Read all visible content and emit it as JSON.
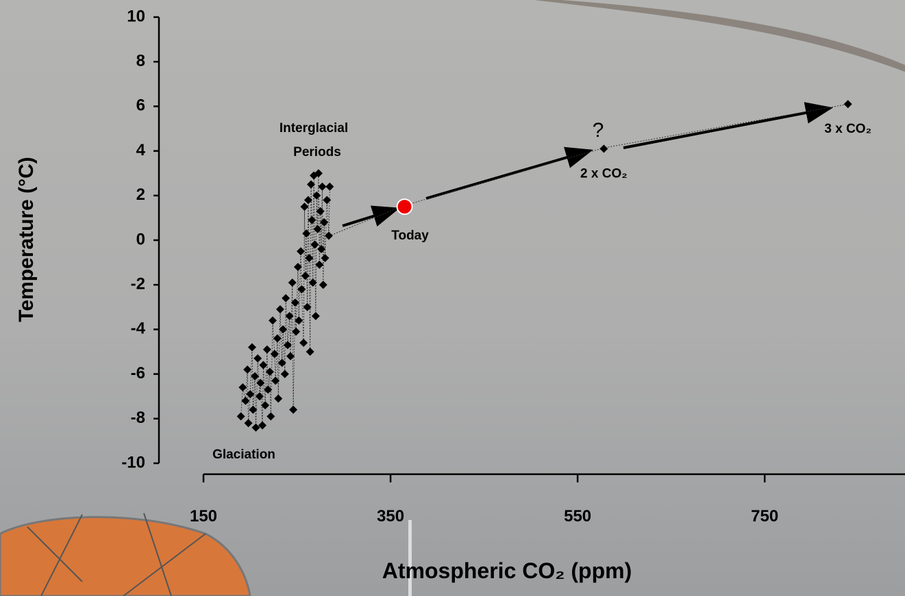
{
  "chart_data": {
    "type": "scatter",
    "x_label": "Atmospheric CO₂ (ppm)",
    "y_label": "Temperature (°C)",
    "xlim": [
      150,
      900
    ],
    "ylim": [
      -10,
      10
    ],
    "xticks": [
      150,
      350,
      550,
      750
    ],
    "yticks": [
      -10,
      -8,
      -6,
      -4,
      -2,
      0,
      2,
      4,
      6,
      8,
      10
    ],
    "annotations": [
      "Interglacial",
      "Periods",
      "Glaciation",
      "?"
    ],
    "series": [
      {
        "color": "#000000",
        "marker": "diamond",
        "connect": true,
        "x": [
          190,
          192,
          195,
          197,
          198,
          200,
          202,
          203,
          205,
          206,
          208,
          210,
          211,
          213,
          214,
          216,
          218,
          219,
          221,
          222,
          224,
          226,
          227,
          229,
          230,
          232,
          234,
          235,
          237,
          238,
          240,
          242,
          243,
          245,
          246,
          248,
          249,
          251,
          252,
          254,
          255,
          257,
          258,
          259,
          260,
          261,
          262,
          263,
          264,
          265,
          266,
          267,
          268,
          269,
          270,
          271,
          272,
          273,
          274,
          275,
          276,
          277,
          278,
          279,
          280,
          282,
          284,
          285
        ],
        "values": [
          -7.9,
          -6.6,
          -7.2,
          -5.8,
          -8.2,
          -6.9,
          -4.8,
          -7.6,
          -6.1,
          -8.4,
          -5.3,
          -7.0,
          -6.4,
          -8.3,
          -5.6,
          -7.4,
          -4.9,
          -6.7,
          -5.9,
          -7.9,
          -3.6,
          -5.1,
          -6.3,
          -4.4,
          -7.1,
          -3.1,
          -5.5,
          -4.0,
          -6.0,
          -2.6,
          -4.7,
          -3.4,
          -5.2,
          -1.9,
          -7.6,
          -2.8,
          -4.1,
          -1.2,
          -3.6,
          -0.5,
          -2.2,
          -4.6,
          1.5,
          -1.6,
          0.3,
          -3.0,
          1.8,
          -0.8,
          -5.0,
          2.5,
          0.9,
          -1.9,
          2.9,
          -0.2,
          -3.4,
          2.0,
          0.5,
          3.0,
          -1.1,
          1.3,
          -0.4,
          2.4,
          -2.0,
          0.8,
          -0.8,
          1.8,
          0.2,
          2.4
        ]
      },
      {
        "color": "#000000",
        "marker": "diamond",
        "connect": false,
        "x": [
          578,
          839
        ],
        "values": [
          4.1,
          6.1
        ],
        "point_labels": [
          "2 x CO₂",
          "3 x CO₂"
        ]
      },
      {
        "color": "#ee0000",
        "marker": "circle",
        "connect": false,
        "x": [
          365
        ],
        "values": [
          1.5
        ],
        "point_labels": [
          "Today"
        ]
      }
    ]
  }
}
